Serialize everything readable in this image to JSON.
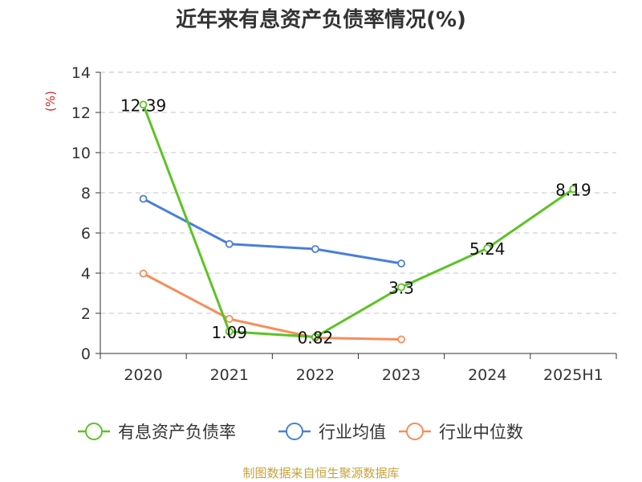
{
  "chart_data": {
    "type": "line",
    "title": "近年来有息资产负债率情况(%)",
    "ylabel": "(%)",
    "xlabel": "",
    "categories": [
      "2020",
      "2021",
      "2022",
      "2023",
      "2024",
      "2025H1"
    ],
    "ylim": [
      0,
      14
    ],
    "yticks": [
      0,
      2,
      4,
      6,
      8,
      10,
      12,
      14
    ],
    "grid": "horizontal-dashed",
    "legend_position": "bottom",
    "series": [
      {
        "name": "有息资产负债率",
        "color": "#5bc424",
        "values": [
          12.39,
          1.09,
          0.82,
          3.3,
          5.24,
          8.19
        ],
        "labels": [
          "12.39",
          "1.09",
          "0.82",
          "3.3",
          "5.24",
          "8.19"
        ]
      },
      {
        "name": "行业均值",
        "color": "#4a7fd9",
        "values": [
          7.7,
          5.45,
          5.2,
          4.48,
          null,
          null
        ]
      },
      {
        "name": "行业中位数",
        "color": "#f78d5a",
        "values": [
          3.98,
          1.72,
          0.78,
          0.7,
          null,
          null
        ]
      }
    ]
  },
  "source": "制图数据来自恒生聚源数据库"
}
